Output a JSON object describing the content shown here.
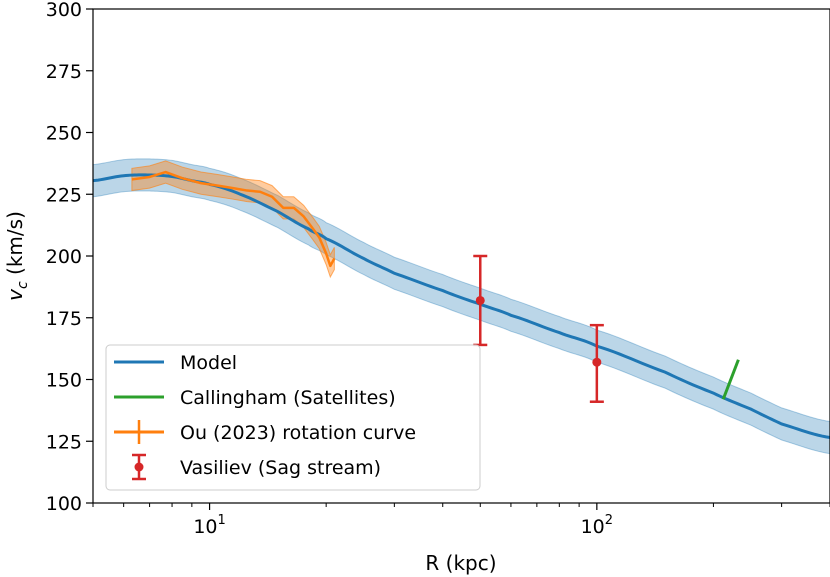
{
  "chart_data": {
    "type": "line",
    "xscale": "log",
    "xlabel": "R (kpc)",
    "ylabel_main": "v",
    "ylabel_sub": "c",
    "ylabel_unit": " (km/s)",
    "xlim": [
      5,
      400
    ],
    "ylim": [
      100,
      300
    ],
    "yticks": [
      "100",
      "125",
      "150",
      "175",
      "200",
      "225",
      "250",
      "275",
      "300"
    ],
    "xtick_major": [
      {
        "value": 10,
        "base": "10",
        "exp": "1"
      },
      {
        "value": 100,
        "base": "10",
        "exp": "2"
      }
    ],
    "colors": {
      "model": "#1f77b4",
      "band": "#1f77b4",
      "callingham": "#2ca02c",
      "ou": "#ff7f0e",
      "vasiliev": "#d62728"
    },
    "series": [
      {
        "name": "Model",
        "kind": "line",
        "x": [
          5,
          6,
          7,
          8,
          9,
          10,
          12,
          15,
          18,
          20,
          25,
          30,
          40,
          50,
          60,
          80,
          100,
          150,
          200,
          250,
          300,
          400
        ],
        "values": [
          230.5,
          232.5,
          232.8,
          232.2,
          230.5,
          229,
          225,
          218,
          211,
          207,
          199,
          193,
          186,
          180.5,
          176,
          169,
          163.5,
          153,
          144.5,
          138,
          132,
          126.5
        ],
        "band_half_width": 6.5
      },
      {
        "name": "Callingham (Satellites)",
        "kind": "segment",
        "x": [
          212,
          232
        ],
        "values": [
          142,
          158
        ]
      },
      {
        "name": "Ou (2023) rotation curve",
        "kind": "line_with_band",
        "x": [
          6.3,
          7,
          7.7,
          8.5,
          9.5,
          10.5,
          11.5,
          12.5,
          13.5,
          14.5,
          15.5,
          16.5,
          17.5,
          18.5,
          19.2,
          20,
          20.5,
          21
        ],
        "values": [
          231,
          232,
          234,
          231.5,
          229.5,
          228.5,
          227.5,
          226.5,
          226,
          224,
          219.5,
          219.5,
          216,
          211,
          207.5,
          201,
          196,
          199
        ],
        "band_half_width": 4.5
      },
      {
        "name": "Vasiliev (Sag stream)",
        "kind": "errorbar",
        "points": [
          {
            "x": 50,
            "y": 182,
            "ylo": 164,
            "yhi": 200
          },
          {
            "x": 100,
            "y": 157,
            "ylo": 141,
            "yhi": 172
          }
        ]
      }
    ],
    "legend": {
      "position": "lower-left",
      "entries": [
        {
          "label": "Model",
          "style": "line",
          "color_key": "model"
        },
        {
          "label": "Callingham (Satellites)",
          "style": "line",
          "color_key": "callingham"
        },
        {
          "label": "Ou (2023) rotation curve",
          "style": "errorline",
          "color_key": "ou"
        },
        {
          "label": "Vasiliev (Sag stream)",
          "style": "errorpoint",
          "color_key": "vasiliev"
        }
      ]
    }
  }
}
